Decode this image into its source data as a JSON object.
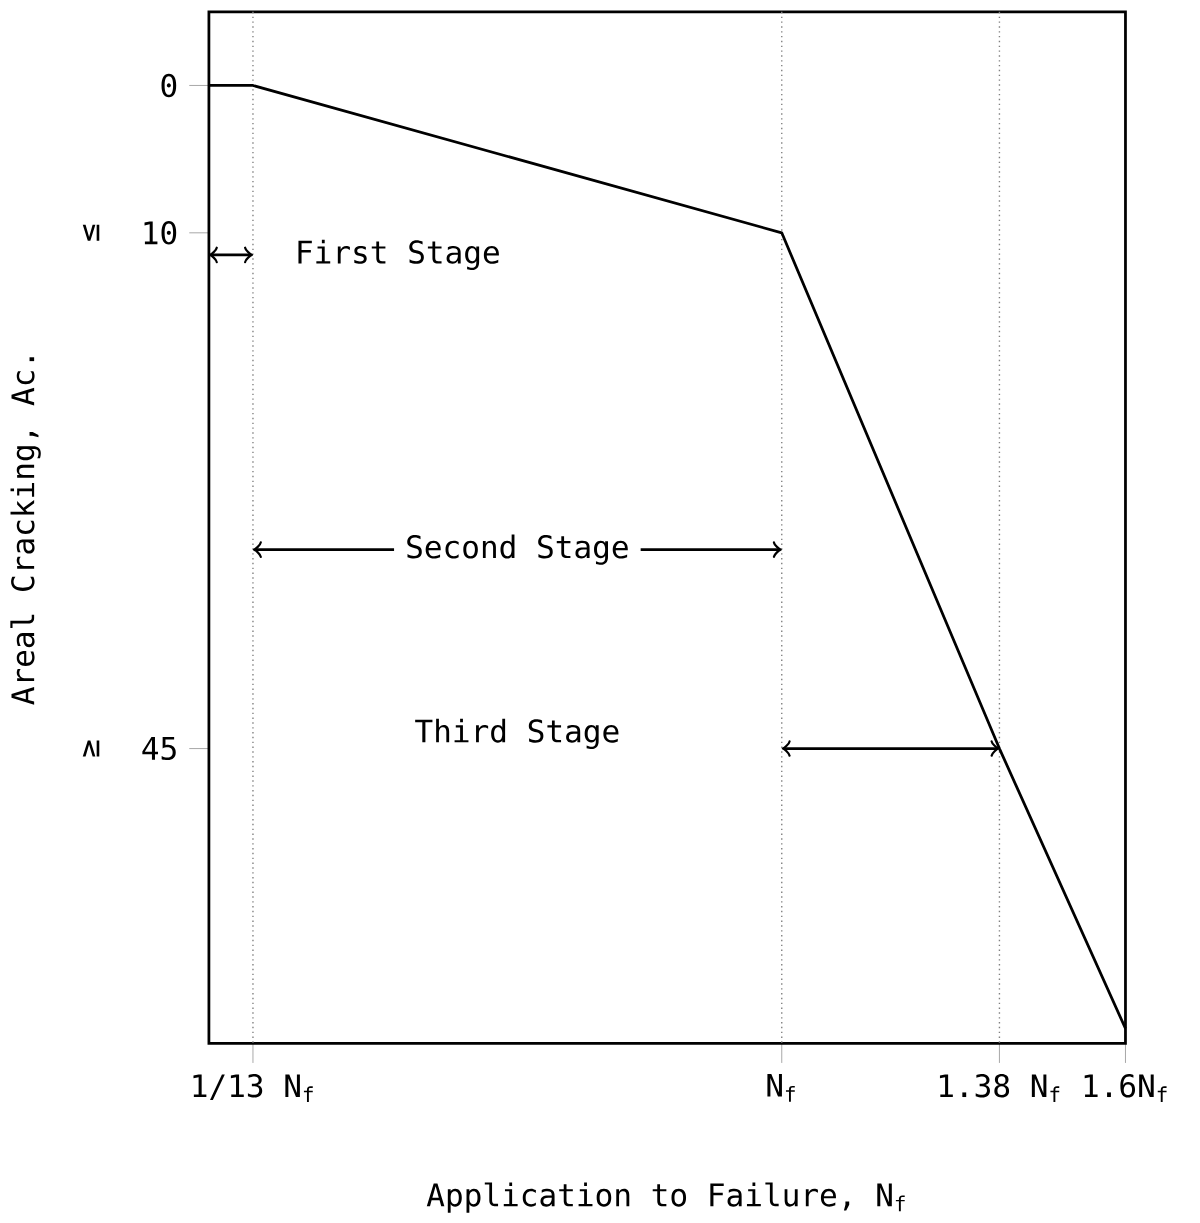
{
  "chart_data": {
    "type": "line",
    "xlabel": "Application to Failure, N$_{f}$",
    "ylabel": "Areal Cracking, Ac.",
    "x": [
      0,
      0.0769,
      1,
      1.38,
      1.6
    ],
    "values": [
      0,
      0,
      10,
      45,
      64
    ],
    "color": "#000000",
    "line_style": "solid",
    "xlim": [
      0,
      1.6
    ],
    "ylim": [
      65,
      -5
    ],
    "xticks": [
      {
        "value": 0.0769,
        "label": "1/13 N$_{f}$"
      },
      {
        "value": 1,
        "label": "N$_{f}$"
      },
      {
        "value": 1.38,
        "label": "1.38 N$_{f}$"
      },
      {
        "value": 1.6,
        "label": "1.6N$_{f}$"
      }
    ],
    "yticks": [
      0,
      10,
      45
    ],
    "ref_lines": [
      {
        "axis": "x",
        "value": 0.0769,
        "line_style": "dotted"
      },
      {
        "axis": "x",
        "value": 1,
        "line_style": "dotted"
      },
      {
        "axis": "x",
        "value": 1.38,
        "line_style": "dotted"
      }
    ],
    "annotations": [
      "First Stage",
      {
        "text": "Second Stage",
        "x": 1,
        "y": 31.5
      },
      "Third Stage",
      "≤",
      "≥"
    ]
  }
}
